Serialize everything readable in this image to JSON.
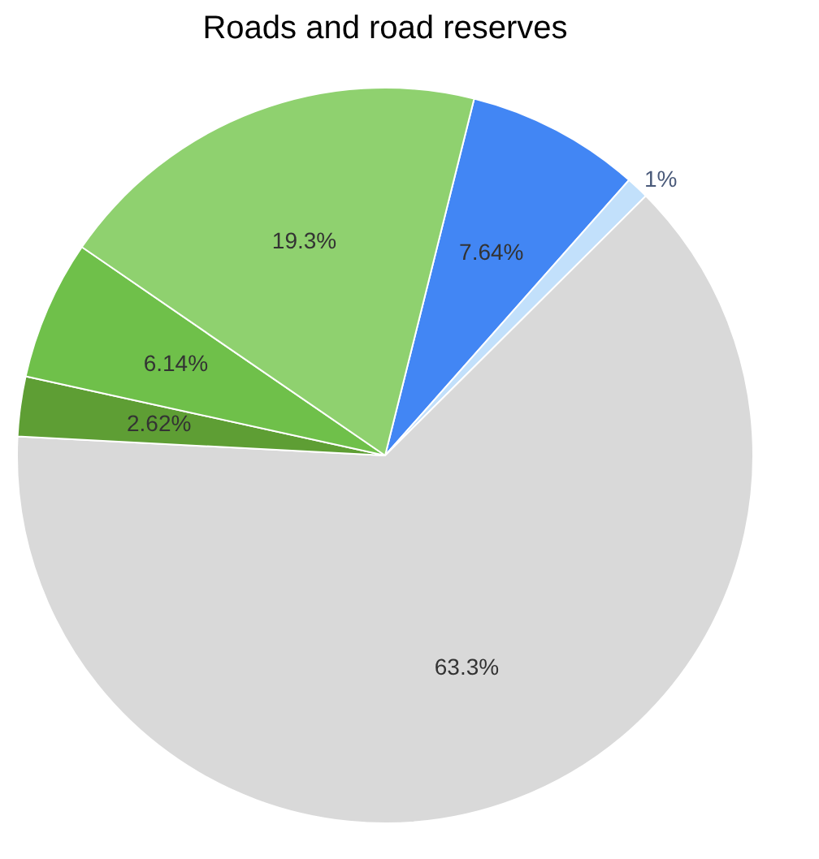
{
  "chart_data": {
    "type": "pie",
    "title": "Roads and road reserves",
    "categories": [
      null,
      null,
      null,
      null,
      null,
      null
    ],
    "values": [
      7.64,
      1,
      63.3,
      2.62,
      6.14,
      19.3
    ],
    "colors": [
      "#4286f4",
      "#c2e0fb",
      "#d9d9d9",
      "#5e9e34",
      "#6fc04a",
      "#8fd16f"
    ],
    "value_labels": [
      "7.64%",
      "1%",
      "63.3%",
      "2.62%",
      "6.14%",
      "19.3%"
    ],
    "legend": false
  }
}
